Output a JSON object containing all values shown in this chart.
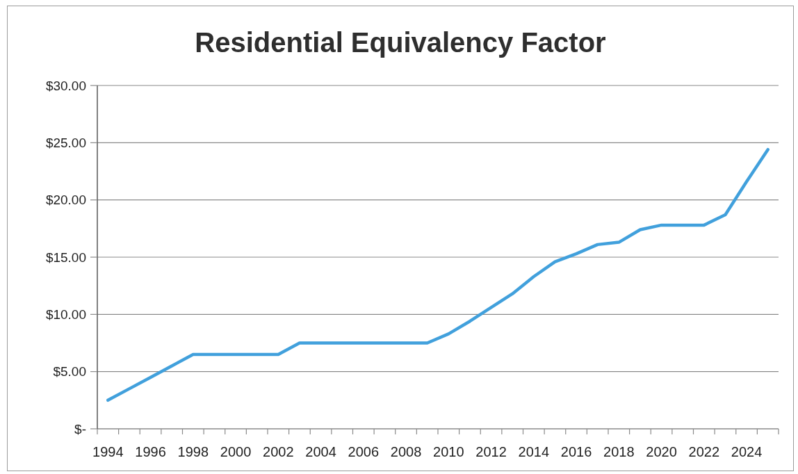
{
  "chart_data": {
    "type": "line",
    "title": "Residential Equivalency Factor",
    "categories": [
      "1994",
      null,
      "1996",
      null,
      "1998",
      null,
      "2000",
      null,
      "2002",
      null,
      "2004",
      null,
      "2006",
      null,
      "2008",
      null,
      "2010",
      null,
      "2012",
      null,
      "2014",
      null,
      "2016",
      null,
      "2018",
      null,
      "2020",
      null,
      "2022",
      null,
      "2024",
      null
    ],
    "series": [
      {
        "color": "#41a0dc",
        "values": [
          2.5,
          3.5,
          4.5,
          5.5,
          6.5,
          6.5,
          6.5,
          6.5,
          6.5,
          7.5,
          7.5,
          7.5,
          7.5,
          7.5,
          7.5,
          7.5,
          8.3,
          9.4,
          10.6,
          11.8,
          13.3,
          14.6,
          15.3,
          16.1,
          16.3,
          17.4,
          17.8,
          17.8,
          17.8,
          18.7,
          21.6,
          24.4
        ]
      }
    ],
    "ylim": [
      0,
      30
    ],
    "yticks": [
      {
        "value": 0,
        "label": "$-"
      },
      {
        "value": 5,
        "label": "$5.00"
      },
      {
        "value": 10,
        "label": "$10.00"
      },
      {
        "value": 15,
        "label": "$15.00"
      },
      {
        "value": 20,
        "label": "$20.00"
      },
      {
        "value": 25,
        "label": "$25.00"
      },
      {
        "value": 30,
        "label": "$30.00"
      }
    ],
    "grid": "y",
    "marker": "none",
    "line_style": "solid"
  }
}
